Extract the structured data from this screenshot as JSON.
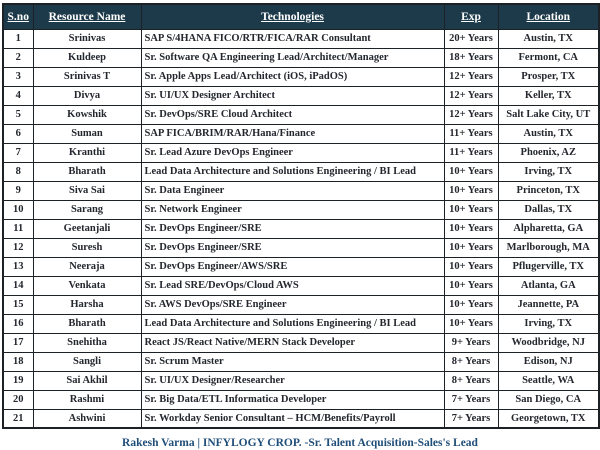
{
  "table": {
    "columns": [
      "S.no",
      "Resource Name",
      "Technologies",
      "Exp",
      "Location"
    ],
    "rows": [
      {
        "sno": "1",
        "name": "Srinivas",
        "tech": "SAP S/4HANA FICO/RTR/FICA/RAR Consultant",
        "exp": "20+ Years",
        "location": "Austin, TX"
      },
      {
        "sno": "2",
        "name": "Kuldeep",
        "tech": "Sr. Software QA Engineering Lead/Architect/Manager",
        "exp": "18+ Years",
        "location": "Fermont, CA"
      },
      {
        "sno": "3",
        "name": "Srinivas T",
        "tech": "Sr. Apple Apps Lead/Architect (iOS, iPadOS)",
        "exp": "12+ Years",
        "location": "Prosper, TX"
      },
      {
        "sno": "4",
        "name": "Divya",
        "tech": "Sr. UI/UX Designer Architect",
        "exp": "12+ Years",
        "location": "Keller, TX"
      },
      {
        "sno": "5",
        "name": "Kowshik",
        "tech": "Sr. DevOps/SRE Cloud Architect",
        "exp": "12+ Years",
        "location": "Salt Lake City, UT"
      },
      {
        "sno": "6",
        "name": "Suman",
        "tech": "SAP FICA/BRIM/RAR/Hana/Finance",
        "exp": "11+ Years",
        "location": "Austin, TX"
      },
      {
        "sno": "7",
        "name": "Kranthi",
        "tech": "Sr. Lead Azure DevOps Engineer",
        "exp": "11+ Years",
        "location": "Phoenix, AZ"
      },
      {
        "sno": "8",
        "name": "Bharath",
        "tech": "Lead Data Architecture and Solutions Engineering / BI Lead",
        "exp": "10+ Years",
        "location": "Irving, TX"
      },
      {
        "sno": "9",
        "name": "Siva Sai",
        "tech": "Sr. Data Engineer",
        "exp": "10+ Years",
        "location": "Princeton, TX"
      },
      {
        "sno": "10",
        "name": "Sarang",
        "tech": "Sr. Network Engineer",
        "exp": "10+ Years",
        "location": "Dallas, TX"
      },
      {
        "sno": "11",
        "name": "Geetanjali",
        "tech": "Sr. DevOps Engineer/SRE",
        "exp": "10+ Years",
        "location": "Alpharetta, GA"
      },
      {
        "sno": "12",
        "name": "Suresh",
        "tech": "Sr. DevOps Engineer/SRE",
        "exp": "10+ Years",
        "location": "Marlborough, MA"
      },
      {
        "sno": "13",
        "name": "Neeraja",
        "tech": "Sr. DevOps Engineer/AWS/SRE",
        "exp": "10+ Years",
        "location": "Pflugerville, TX"
      },
      {
        "sno": "14",
        "name": "Venkata",
        "tech": "Sr. Lead SRE/DevOps/Cloud AWS",
        "exp": "10+ Years",
        "location": "Atlanta, GA"
      },
      {
        "sno": "15",
        "name": "Harsha",
        "tech": "Sr. AWS DevOps/SRE Engineer",
        "exp": "10+ Years",
        "location": "Jeannette, PA"
      },
      {
        "sno": "16",
        "name": "Bharath",
        "tech": "Lead Data Architecture and Solutions Engineering / BI Lead",
        "exp": "10+ Years",
        "location": "Irving, TX"
      },
      {
        "sno": "17",
        "name": "Snehitha",
        "tech": "React JS/React Native/MERN Stack Developer",
        "exp": "9+ Years",
        "location": "Woodbridge, NJ"
      },
      {
        "sno": "18",
        "name": "Sangli",
        "tech": "Sr. Scrum Master",
        "exp": "8+ Years",
        "location": "Edison, NJ"
      },
      {
        "sno": "19",
        "name": "Sai Akhil",
        "tech": "Sr. UI/UX Designer/Researcher",
        "exp": "8+ Years",
        "location": "Seattle, WA"
      },
      {
        "sno": "20",
        "name": "Rashmi",
        "tech": "Sr. Big Data/ETL Informatica Developer",
        "exp": "7+ Years",
        "location": "San Diego, CA"
      },
      {
        "sno": "21",
        "name": "Ashwini",
        "tech": "Sr. Workday Senior Consultant – HCM/Benefits/Payroll",
        "exp": "7+ Years",
        "location": "Georgetown, TX"
      }
    ]
  },
  "footer": {
    "text": "Rakesh Varma  |  INFYLOGY CROP. -Sr. Talent Acquisition-Sales's Lead"
  },
  "colors": {
    "header_bg": "#1d3a4a",
    "header_text": "#ffffff",
    "body_text": "#24272e",
    "border": "#1c2126",
    "footer_text": "#1f4e79",
    "page_bg": "#ffffff"
  }
}
